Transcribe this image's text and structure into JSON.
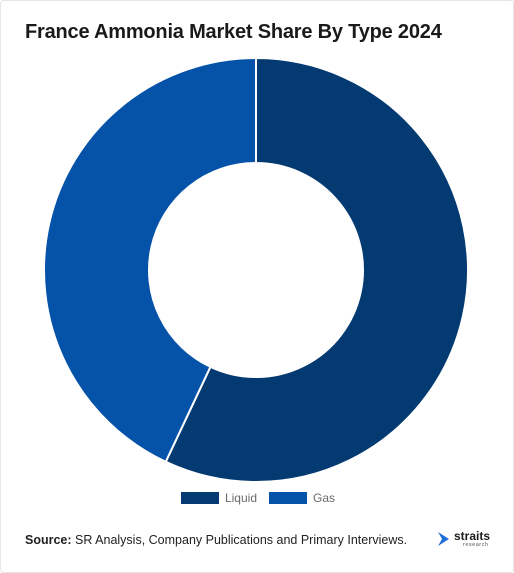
{
  "header": {
    "title": "France Ammonia Market Share By Type 2024"
  },
  "chart_data": {
    "type": "pie",
    "variant": "donut",
    "title": "France Ammonia Market Share By Type 2024",
    "categories": [
      "Liquid",
      "Gas"
    ],
    "values": [
      57,
      43
    ],
    "colors": [
      "#033a72",
      "#0553a9"
    ],
    "legend_position": "bottom-center"
  },
  "legend": {
    "items": [
      {
        "label": "Liquid",
        "color": "#033a72"
      },
      {
        "label": "Gas",
        "color": "#0553a9"
      }
    ]
  },
  "footer": {
    "source_label": "Source:",
    "source_text": " SR Analysis, Company Publications and Primary Interviews."
  },
  "logo": {
    "word": "straits",
    "sub": "research",
    "icon": "straits-logo-icon",
    "accent": "#1e6fd9"
  }
}
